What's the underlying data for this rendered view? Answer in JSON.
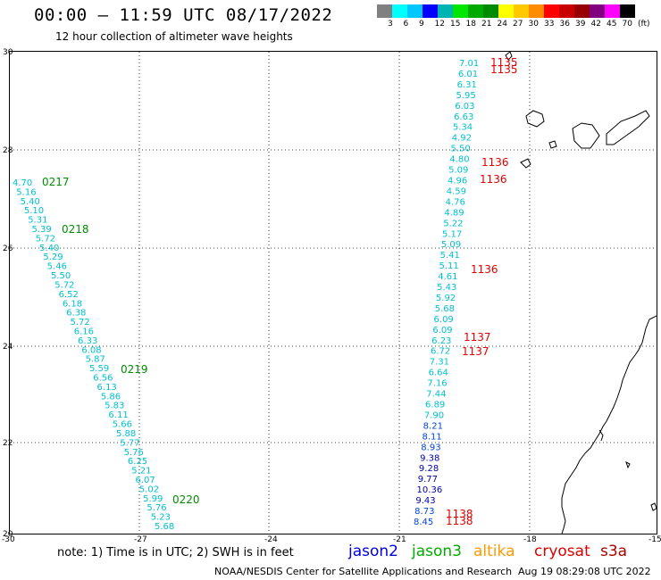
{
  "title": "00:00 – 11:59 UTC 08/17/2022",
  "subtitle": "12 hour collection of altimeter wave heights",
  "legend": {
    "colors": [
      "#808080",
      "#00ffff",
      "#00c8ff",
      "#0000ff",
      "#00b4b4",
      "#00e600",
      "#00aa00",
      "#008c00",
      "#ffff00",
      "#ffc800",
      "#ff8c00",
      "#ff0000",
      "#c80000",
      "#960000",
      "#800080",
      "#ff00ff",
      "#000000"
    ],
    "labels": [
      "3",
      "6",
      "9",
      "12",
      "15",
      "18",
      "21",
      "24",
      "27",
      "30",
      "33",
      "36",
      "39",
      "42",
      "45",
      "70"
    ],
    "unit": "(ft)"
  },
  "axes": {
    "lat_labels": [
      "30",
      "28",
      "26",
      "24",
      "22",
      "20"
    ],
    "lon_labels": [
      "-30",
      "-27",
      "-24",
      "-21",
      "-18",
      "-15"
    ]
  },
  "tracks": [
    {
      "id": "west",
      "times": [
        "0217",
        "0218",
        "0219",
        "0220"
      ],
      "time_color": "#008c00",
      "values": [
        "4.70",
        "5.16",
        "5.40",
        "5.10",
        "5.31",
        "5.39",
        "5.72",
        "5.40",
        "5.29",
        "5.46",
        "5.50",
        "5.72",
        "6.52",
        "6.18",
        "6.38",
        "5.72",
        "6.16",
        "6.33",
        "6.08",
        "5.87",
        "5.59",
        "6.56",
        "6.13",
        "5.86",
        "5.83",
        "6.11",
        "5.66",
        "5.88",
        "5.77",
        "5.76",
        "6.25",
        "5.21",
        "6.07",
        "5.02",
        "5.99",
        "5.76",
        "5.23",
        "5.68"
      ]
    },
    {
      "id": "east",
      "times": [
        "1135",
        "1135",
        "1136",
        "1136",
        "1136",
        "1137",
        "1137",
        "1138",
        "1138"
      ],
      "time_color": "#e00000",
      "values": [
        "7.01",
        "6.01",
        "6.31",
        "5.95",
        "6.03",
        "6.63",
        "5.34",
        "4.92",
        "5.50",
        "4.80",
        "5.09",
        "4.96",
        "4.59",
        "4.76",
        "4.89",
        "5.22",
        "5.17",
        "5.09",
        "5.41",
        "5.11",
        "4.61",
        "5.43",
        "5.92",
        "5.68",
        "6.09",
        "6.09",
        "6.23",
        "6.72",
        "7.31",
        "6.64",
        "7.16",
        "7.44",
        "6.89",
        "7.90",
        "8.21",
        "8.11",
        "8.93",
        "9.38",
        "9.28",
        "9.77",
        "10.36",
        "9.43",
        "8.73",
        "8.45"
      ]
    }
  ],
  "note": "note: 1) Time is in UTC; 2) SWH is in feet",
  "satellites": [
    {
      "name": "jason2",
      "color": "#0000dd"
    },
    {
      "name": "jason3",
      "color": "#00aa00"
    },
    {
      "name": "altika",
      "color": "#ff9900"
    },
    {
      "name": "cryosat",
      "color": "#dd0000"
    },
    {
      "name": "s3a",
      "color": "#aa0000"
    }
  ],
  "footer": "NOAA/NESDIS Center for Satellite Applications and Research",
  "footer_time": "Aug 19 08:29:08 UTC 2022"
}
